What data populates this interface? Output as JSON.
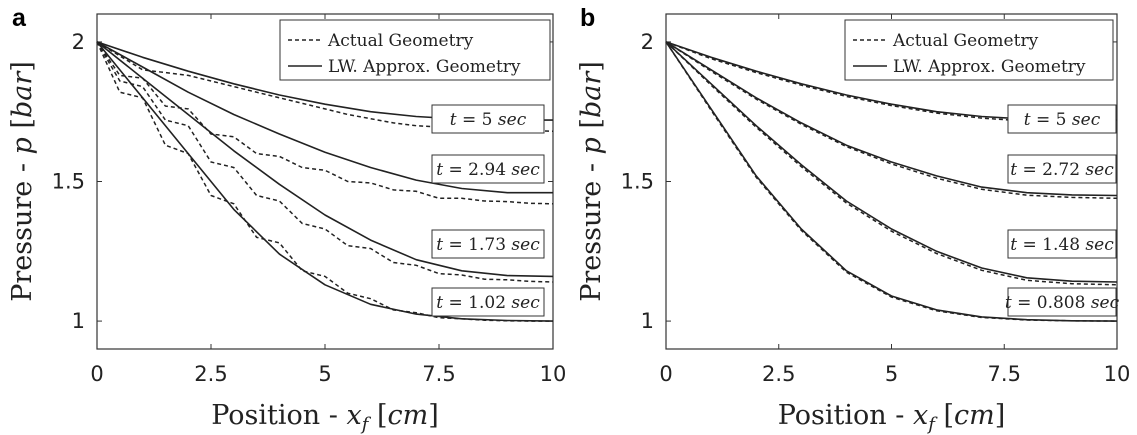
{
  "chart_data": [
    {
      "panel": "a",
      "type": "line",
      "xlabel": "Position - x_f [cm]",
      "ylabel": "Pressure - p [bar]",
      "xlabel_parts": {
        "lead": "Position - ",
        "var": "x",
        "sub": "f",
        "unit": "cm"
      },
      "ylabel_parts": {
        "lead": "Pressure - ",
        "var": "p",
        "unit": "bar"
      },
      "xlim": [
        0,
        10
      ],
      "ylim": [
        0.9,
        2.1
      ],
      "xticks": [
        "0",
        "2.5",
        "5",
        "7.5",
        "10"
      ],
      "yticks": [
        "1",
        "1.5",
        "2"
      ],
      "legend": {
        "position": "top-right",
        "entries": [
          "Actual Geometry",
          "LW. Approx. Geometry"
        ]
      },
      "grid": false,
      "series": [
        {
          "time": "t = 5 sec",
          "time_value": "5",
          "dashed_end": 1.68,
          "solid_end": 1.72,
          "solid": {
            "x": [
              0,
              1,
              2,
              3,
              4,
              5,
              6,
              7,
              8,
              9,
              10
            ],
            "y": [
              2.0,
              1.945,
              1.895,
              1.85,
              1.81,
              1.777,
              1.75,
              1.733,
              1.723,
              1.72,
              1.72
            ]
          },
          "dashed": {
            "x": [
              0,
              0.5,
              1,
              1.5,
              2,
              2.5,
              3,
              3.5,
              4,
              4.5,
              5,
              5.5,
              6,
              6.5,
              7,
              7.5,
              8,
              8.5,
              9,
              9.5,
              10
            ],
            "y": [
              2.0,
              1.95,
              1.9,
              1.89,
              1.88,
              1.86,
              1.84,
              1.82,
              1.8,
              1.78,
              1.76,
              1.74,
              1.725,
              1.71,
              1.7,
              1.695,
              1.69,
              1.688,
              1.685,
              1.683,
              1.68
            ]
          }
        },
        {
          "time": "t = 2.94 sec",
          "time_value": "2.94",
          "dashed_end": 1.42,
          "solid_end": 1.46,
          "solid": {
            "x": [
              0,
              1,
              2,
              3,
              4,
              5,
              6,
              7,
              8,
              9,
              10
            ],
            "y": [
              2.0,
              1.91,
              1.82,
              1.74,
              1.67,
              1.605,
              1.55,
              1.505,
              1.475,
              1.46,
              1.46
            ]
          },
          "dashed": {
            "x": [
              0,
              0.5,
              1,
              1.5,
              2,
              2.5,
              3,
              3.5,
              4,
              4.5,
              5,
              5.5,
              6,
              6.5,
              7,
              7.5,
              8,
              8.5,
              9,
              9.5,
              10
            ],
            "y": [
              2.0,
              1.88,
              1.87,
              1.77,
              1.76,
              1.67,
              1.66,
              1.6,
              1.59,
              1.55,
              1.54,
              1.5,
              1.495,
              1.47,
              1.465,
              1.44,
              1.44,
              1.43,
              1.428,
              1.422,
              1.42
            ]
          }
        },
        {
          "time": "t = 1.73 sec",
          "time_value": "1.73",
          "dashed_end": 1.14,
          "solid_end": 1.16,
          "solid": {
            "x": [
              0,
              1,
              2,
              3,
              4,
              5,
              6,
              7,
              8,
              9,
              10
            ],
            "y": [
              2.0,
              1.87,
              1.74,
              1.61,
              1.49,
              1.38,
              1.29,
              1.22,
              1.18,
              1.163,
              1.16
            ]
          },
          "dashed": {
            "x": [
              0,
              0.5,
              1,
              1.5,
              2,
              2.5,
              3,
              3.5,
              4,
              4.5,
              5,
              5.5,
              6,
              6.5,
              7,
              7.5,
              8,
              8.5,
              9,
              9.5,
              10
            ],
            "y": [
              2.0,
              1.86,
              1.84,
              1.72,
              1.7,
              1.57,
              1.55,
              1.45,
              1.43,
              1.35,
              1.33,
              1.27,
              1.26,
              1.21,
              1.2,
              1.17,
              1.165,
              1.15,
              1.148,
              1.142,
              1.14
            ]
          }
        },
        {
          "time": "t = 1.02 sec",
          "time_value": "1.02",
          "dashed_end": 1.0,
          "solid_end": 1.0,
          "solid": {
            "x": [
              0,
              1,
              2,
              3,
              4,
              5,
              6,
              7,
              8,
              9,
              10
            ],
            "y": [
              2.0,
              1.8,
              1.6,
              1.4,
              1.24,
              1.13,
              1.06,
              1.025,
              1.008,
              1.002,
              1.0
            ]
          },
          "dashed": {
            "x": [
              0,
              0.5,
              1,
              1.5,
              2,
              2.5,
              3,
              3.5,
              4,
              4.5,
              5,
              5.5,
              6,
              6.5,
              7,
              7.5,
              8,
              8.5,
              9,
              9.5,
              10
            ],
            "y": [
              2.0,
              1.82,
              1.8,
              1.63,
              1.6,
              1.45,
              1.42,
              1.3,
              1.28,
              1.18,
              1.16,
              1.1,
              1.08,
              1.04,
              1.03,
              1.012,
              1.008,
              1.003,
              1.001,
              1.0,
              1.0
            ]
          }
        }
      ]
    },
    {
      "panel": "b",
      "type": "line",
      "xlabel": "Position - x_f [cm]",
      "ylabel": "Pressure - p [bar]",
      "xlabel_parts": {
        "lead": "Position - ",
        "var": "x",
        "sub": "f",
        "unit": "cm"
      },
      "ylabel_parts": {
        "lead": "Pressure - ",
        "var": "p",
        "unit": "bar"
      },
      "xlim": [
        0,
        10
      ],
      "ylim": [
        0.9,
        2.1
      ],
      "xticks": [
        "0",
        "2.5",
        "5",
        "7.5",
        "10"
      ],
      "yticks": [
        "1",
        "1.5",
        "2"
      ],
      "legend": {
        "position": "top-right",
        "entries": [
          "Actual Geometry",
          "LW. Approx. Geometry"
        ]
      },
      "grid": false,
      "series": [
        {
          "time": "t = 5 sec",
          "time_value": "5",
          "dashed_end": 1.71,
          "solid_end": 1.72,
          "solid": {
            "x": [
              0,
              1,
              2,
              3,
              4,
              5,
              6,
              7,
              8,
              9,
              10
            ],
            "y": [
              2.0,
              1.945,
              1.895,
              1.85,
              1.81,
              1.777,
              1.75,
              1.733,
              1.723,
              1.72,
              1.72
            ]
          },
          "dashed": {
            "x": [
              0,
              1,
              2,
              3,
              4,
              5,
              6,
              7,
              8,
              9,
              10
            ],
            "y": [
              2.0,
              1.94,
              1.89,
              1.845,
              1.805,
              1.772,
              1.745,
              1.727,
              1.716,
              1.711,
              1.71
            ]
          }
        },
        {
          "time": "t = 2.72 sec",
          "time_value": "2.72",
          "dashed_end": 1.44,
          "solid_end": 1.45,
          "solid": {
            "x": [
              0,
              1,
              2,
              3,
              4,
              5,
              6,
              7,
              8,
              9,
              10
            ],
            "y": [
              2.0,
              1.9,
              1.8,
              1.71,
              1.63,
              1.57,
              1.52,
              1.48,
              1.46,
              1.452,
              1.45
            ]
          },
          "dashed": {
            "x": [
              0,
              1,
              2,
              3,
              4,
              5,
              6,
              7,
              8,
              9,
              10
            ],
            "y": [
              2.0,
              1.895,
              1.795,
              1.705,
              1.625,
              1.563,
              1.512,
              1.472,
              1.451,
              1.443,
              1.44
            ]
          }
        },
        {
          "time": "t = 1.48 sec",
          "time_value": "1.48",
          "dashed_end": 1.13,
          "solid_end": 1.14,
          "solid": {
            "x": [
              0,
              1,
              2,
              3,
              4,
              5,
              6,
              7,
              8,
              9,
              10
            ],
            "y": [
              2.0,
              1.85,
              1.7,
              1.56,
              1.43,
              1.33,
              1.25,
              1.19,
              1.155,
              1.143,
              1.14
            ]
          },
          "dashed": {
            "x": [
              0,
              1,
              2,
              3,
              4,
              5,
              6,
              7,
              8,
              9,
              10
            ],
            "y": [
              2.0,
              1.845,
              1.694,
              1.553,
              1.423,
              1.322,
              1.242,
              1.182,
              1.146,
              1.134,
              1.13
            ]
          }
        },
        {
          "time": "t = 0.808 sec",
          "time_value": "0.808",
          "dashed_end": 1.0,
          "solid_end": 1.0,
          "solid": {
            "x": [
              0,
              1,
              2,
              3,
              4,
              5,
              6,
              7,
              8,
              9,
              10
            ],
            "y": [
              2.0,
              1.76,
              1.52,
              1.33,
              1.18,
              1.09,
              1.04,
              1.015,
              1.005,
              1.001,
              1.0
            ]
          },
          "dashed": {
            "x": [
              0,
              1,
              2,
              3,
              4,
              5,
              6,
              7,
              8,
              9,
              10
            ],
            "y": [
              2.0,
              1.755,
              1.515,
              1.325,
              1.175,
              1.086,
              1.037,
              1.013,
              1.004,
              1.001,
              1.0
            ]
          }
        }
      ]
    }
  ]
}
